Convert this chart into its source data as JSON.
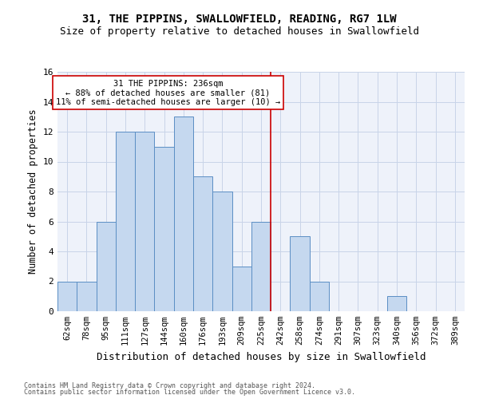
{
  "title1": "31, THE PIPPINS, SWALLOWFIELD, READING, RG7 1LW",
  "title2": "Size of property relative to detached houses in Swallowfield",
  "xlabel": "Distribution of detached houses by size in Swallowfield",
  "ylabel": "Number of detached properties",
  "footnote1": "Contains HM Land Registry data © Crown copyright and database right 2024.",
  "footnote2": "Contains public sector information licensed under the Open Government Licence v3.0.",
  "bin_labels": [
    "62sqm",
    "78sqm",
    "95sqm",
    "111sqm",
    "127sqm",
    "144sqm",
    "160sqm",
    "176sqm",
    "193sqm",
    "209sqm",
    "225sqm",
    "242sqm",
    "258sqm",
    "274sqm",
    "291sqm",
    "307sqm",
    "323sqm",
    "340sqm",
    "356sqm",
    "372sqm",
    "389sqm"
  ],
  "bar_values": [
    2,
    2,
    6,
    12,
    12,
    11,
    13,
    9,
    8,
    3,
    6,
    0,
    5,
    2,
    0,
    0,
    0,
    1,
    0,
    0,
    0
  ],
  "bar_color": "#c5d8ef",
  "bar_edge_color": "#5b8ec4",
  "grid_color": "#c8d4e8",
  "background_color": "#eef2fa",
  "vline_x_index": 11,
  "vline_color": "#cc0000",
  "annotation_line1": "31 THE PIPPINS: 236sqm",
  "annotation_line2": "← 88% of detached houses are smaller (81)",
  "annotation_line3": "11% of semi-detached houses are larger (10) →",
  "annotation_box_color": "#cc0000",
  "ylim_max": 16,
  "yticks": [
    0,
    2,
    4,
    6,
    8,
    10,
    12,
    14,
    16
  ],
  "title1_fontsize": 10,
  "title2_fontsize": 9,
  "ylabel_fontsize": 8.5,
  "xlabel_fontsize": 9,
  "tick_fontsize": 7.5,
  "annotation_fontsize": 7.5,
  "footnote_fontsize": 6
}
